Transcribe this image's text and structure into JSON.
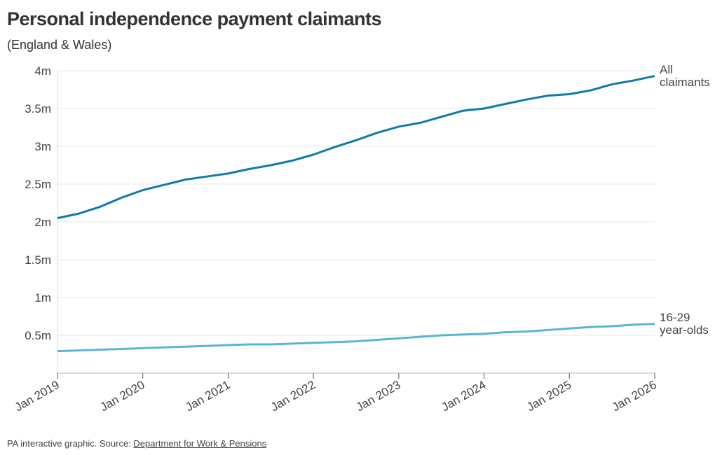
{
  "chart_data": {
    "type": "line",
    "title": "Personal independence payment claimants",
    "subtitle": "(England & Wales)",
    "x": [
      "Jan 2019",
      "Apr 2019",
      "Jul 2019",
      "Oct 2019",
      "Jan 2020",
      "Apr 2020",
      "Jul 2020",
      "Oct 2020",
      "Jan 2021",
      "Apr 2021",
      "Jul 2021",
      "Oct 2021",
      "Jan 2022",
      "Apr 2022",
      "Jul 2022",
      "Oct 2022",
      "Jan 2023",
      "Apr 2023",
      "Jul 2023",
      "Oct 2023",
      "Jan 2024",
      "Apr 2024",
      "Jul 2024",
      "Oct 2024",
      "Jan 2025",
      "Apr 2025",
      "Jul 2025",
      "Oct 2025",
      "Jan 2026"
    ],
    "series": [
      {
        "name": "All claimants",
        "color": "#0f7bab",
        "values": [
          2.05,
          2.11,
          2.2,
          2.32,
          2.42,
          2.49,
          2.56,
          2.6,
          2.64,
          2.7,
          2.75,
          2.81,
          2.89,
          2.99,
          3.08,
          3.18,
          3.26,
          3.31,
          3.39,
          3.47,
          3.5,
          3.56,
          3.62,
          3.67,
          3.69,
          3.74,
          3.82,
          3.87,
          3.93
        ]
      },
      {
        "name": "16-29 year-olds",
        "color": "#5ab6d3",
        "values": [
          0.29,
          0.3,
          0.31,
          0.32,
          0.33,
          0.34,
          0.35,
          0.36,
          0.37,
          0.38,
          0.38,
          0.39,
          0.4,
          0.41,
          0.42,
          0.44,
          0.46,
          0.48,
          0.5,
          0.51,
          0.52,
          0.54,
          0.55,
          0.57,
          0.59,
          0.61,
          0.62,
          0.64,
          0.65
        ]
      }
    ],
    "ylim": [
      0,
      4
    ],
    "yticks": [
      {
        "value": 0.5,
        "label": "0.5m"
      },
      {
        "value": 1,
        "label": "1m"
      },
      {
        "value": 1.5,
        "label": "1.5m"
      },
      {
        "value": 2,
        "label": "2m"
      },
      {
        "value": 2.5,
        "label": "2.5m"
      },
      {
        "value": 3,
        "label": "3m"
      },
      {
        "value": 3.5,
        "label": "3.5m"
      },
      {
        "value": 4,
        "label": "4m"
      }
    ],
    "xticks": [
      "Jan 2019",
      "Jan 2020",
      "Jan 2021",
      "Jan 2022",
      "Jan 2023",
      "Jan 2024",
      "Jan 2025",
      "Jan 2026"
    ],
    "grid": true,
    "source_prefix": "PA interactive graphic. Source:",
    "source_link": "Department for Work & Pensions"
  }
}
